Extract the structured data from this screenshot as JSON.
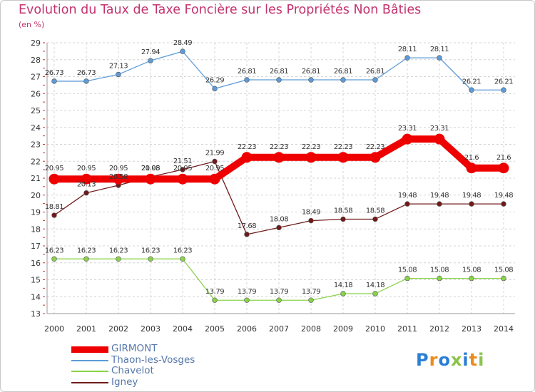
{
  "chart_data": {
    "type": "line",
    "title": "Evolution du Taux de Taxe Foncière sur les Propriétés Non Bâties",
    "ylabel": "(en %)",
    "xlabel": "",
    "ylim": [
      13,
      29
    ],
    "yticks": [
      "13",
      "14",
      "15",
      "16",
      "17",
      "18",
      "19",
      "20",
      "21",
      "22",
      "23",
      "24",
      "25",
      "26",
      "27",
      "28",
      "29"
    ],
    "categories": [
      "2000",
      "2001",
      "2002",
      "2003",
      "2004",
      "2005",
      "2006",
      "2007",
      "2008",
      "2009",
      "2010",
      "2011",
      "2012",
      "2013",
      "2014"
    ],
    "series": [
      {
        "name": "GIRMONT",
        "color": "#ee0000",
        "values": [
          20.95,
          20.95,
          20.95,
          20.95,
          20.95,
          20.95,
          22.23,
          22.23,
          22.23,
          22.23,
          22.23,
          23.31,
          23.31,
          21.6,
          21.6
        ],
        "labels": [
          "20.95",
          "20.95",
          "20.95",
          "20.95",
          "20.95",
          "20.95",
          "22.23",
          "22.23",
          "22.23",
          "22.23",
          "22.23",
          "23.31",
          "23.31",
          "21.6",
          "21.6"
        ]
      },
      {
        "name": "Thaon-les-Vosges",
        "color": "#5d9bd8",
        "values": [
          26.73,
          26.73,
          27.13,
          27.94,
          28.49,
          26.29,
          26.81,
          26.81,
          26.81,
          26.81,
          26.81,
          28.11,
          28.11,
          26.21,
          26.21
        ],
        "labels": [
          "26.73",
          "26.73",
          "27.13",
          "27.94",
          "28.49",
          "26.29",
          "26.81",
          "26.81",
          "26.81",
          "26.81",
          "26.81",
          "28.11",
          "28.11",
          "26.21",
          "26.21"
        ]
      },
      {
        "name": "Chavelot",
        "color": "#8ad24a",
        "values": [
          16.23,
          16.23,
          16.23,
          16.23,
          16.23,
          13.79,
          13.79,
          13.79,
          13.79,
          14.18,
          14.18,
          15.08,
          15.08,
          15.08,
          15.08
        ],
        "labels": [
          "16.23",
          "16.23",
          "16.23",
          "16.23",
          "16.23",
          "13.79",
          "13.79",
          "13.79",
          "13.79",
          "14.18",
          "14.18",
          "15.08",
          "15.08",
          "15.08",
          "15.08"
        ]
      },
      {
        "name": "Igney",
        "color": "#701a1a",
        "values": [
          18.81,
          20.13,
          20.58,
          21.08,
          21.51,
          21.99,
          17.68,
          18.08,
          18.49,
          18.58,
          18.58,
          19.48,
          19.48,
          19.48,
          19.48
        ],
        "labels": [
          "18.81",
          "20.13",
          "20.58",
          "21.08",
          "21.51",
          "21.99",
          "17.68",
          "18.08",
          "18.49",
          "18.58",
          "18.58",
          "19.48",
          "19.48",
          "19.48",
          "19.48"
        ]
      }
    ]
  },
  "logo": {
    "letters": [
      "P",
      "r",
      "o",
      "x",
      "i",
      "t",
      "i"
    ],
    "colors": [
      "#2a7fd4",
      "#e98c1c",
      "#2a7fd4",
      "#8bc34a",
      "#2a7fd4",
      "#e98c1c",
      "#8bc34a"
    ]
  }
}
